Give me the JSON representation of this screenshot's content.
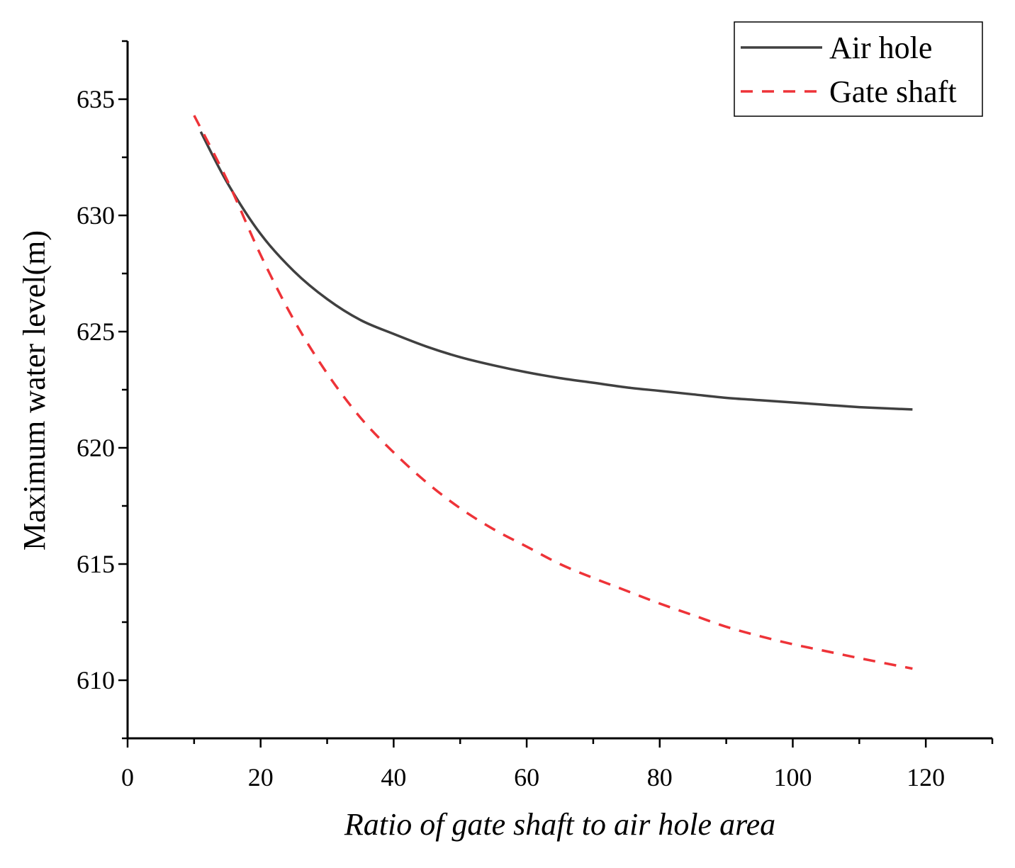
{
  "chart_data": {
    "type": "line",
    "title": "",
    "xlabel": "Ratio of gate shaft to air hole area",
    "ylabel": "Maximum water level(m)",
    "xlim": [
      0,
      130
    ],
    "ylim": [
      607.5,
      637.5
    ],
    "x_ticks": [
      0,
      20,
      40,
      60,
      80,
      100,
      120
    ],
    "x_tick_labels": [
      "0",
      "20",
      "40",
      "60",
      "80",
      "100",
      "120"
    ],
    "y_ticks": [
      610,
      615,
      620,
      625,
      630,
      635
    ],
    "y_tick_labels": [
      "610",
      "615",
      "620",
      "625",
      "630",
      "635"
    ],
    "x_minor_step": 10,
    "y_minor_step": 2.5,
    "grid": false,
    "legend_position": "top-right",
    "series": [
      {
        "name": "Air hole",
        "color": "#404040",
        "style": "solid",
        "x": [
          11,
          15,
          20,
          25,
          30,
          35,
          40,
          45,
          50,
          55,
          60,
          65,
          70,
          75,
          80,
          85,
          90,
          95,
          100,
          105,
          110,
          118
        ],
        "y": [
          633.6,
          631.4,
          629.2,
          627.6,
          626.4,
          625.5,
          624.9,
          624.35,
          623.9,
          623.55,
          623.25,
          623.0,
          622.8,
          622.6,
          622.45,
          622.3,
          622.15,
          622.05,
          621.95,
          621.85,
          621.75,
          621.65
        ]
      },
      {
        "name": "Gate shaft",
        "color": "#ee3338",
        "style": "dashed",
        "x": [
          10,
          15,
          20,
          25,
          30,
          35,
          40,
          45,
          50,
          55,
          60,
          65,
          70,
          75,
          80,
          85,
          90,
          95,
          100,
          105,
          110,
          118
        ],
        "y": [
          634.3,
          631.5,
          628.3,
          625.5,
          623.2,
          621.3,
          619.8,
          618.5,
          617.4,
          616.5,
          615.75,
          615.0,
          614.4,
          613.85,
          613.3,
          612.8,
          612.3,
          611.9,
          611.55,
          611.25,
          610.95,
          610.5
        ]
      }
    ]
  }
}
